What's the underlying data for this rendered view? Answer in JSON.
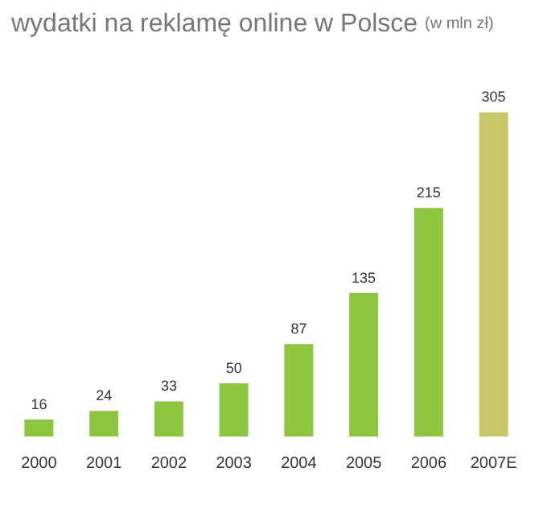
{
  "chart_data": {
    "type": "bar",
    "title": "wydatki na reklamę online w Polsce",
    "subtitle": "(w mln zł)",
    "categories": [
      "2000",
      "2001",
      "2002",
      "2003",
      "2004",
      "2005",
      "2006",
      "2007E"
    ],
    "values": [
      16,
      24,
      33,
      50,
      87,
      135,
      215,
      305
    ],
    "colors": [
      "#8dc63f",
      "#8dc63f",
      "#8dc63f",
      "#8dc63f",
      "#8dc63f",
      "#8dc63f",
      "#8dc63f",
      "#c8c86a"
    ],
    "data_labels": true
  }
}
